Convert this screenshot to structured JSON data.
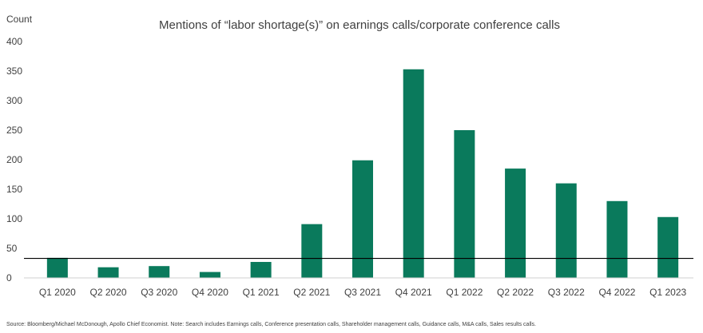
{
  "chart_data": {
    "type": "bar",
    "title": "Mentions of “labor shortage(s)” on earnings calls/corporate conference calls",
    "ylabel": "Count",
    "xlabel": "",
    "categories": [
      "Q1 2020",
      "Q2 2020",
      "Q3 2020",
      "Q4 2020",
      "Q1 2021",
      "Q2 2021",
      "Q3 2021",
      "Q4 2021",
      "Q1 2022",
      "Q2 2022",
      "Q3 2022",
      "Q4 2022",
      "Q1 2023"
    ],
    "values": [
      34,
      18,
      20,
      10,
      27,
      91,
      199,
      353,
      250,
      185,
      160,
      130,
      103
    ],
    "ylim": [
      0,
      400
    ],
    "yticks": [
      "0",
      "50",
      "100",
      "150",
      "200",
      "250",
      "300",
      "350",
      "400"
    ],
    "reference_line": 33,
    "bar_color": "#0a7a5c",
    "line_color": "#000000",
    "grid": false,
    "legend": "none"
  },
  "footnote": "Source: Bloomberg/Michael McDonough, Apollo Chief Economist. Note: Search includes Earnings calls, Conference presentation calls, Shareholder management calls, Guidance calls, M&A calls, Sales results calls."
}
